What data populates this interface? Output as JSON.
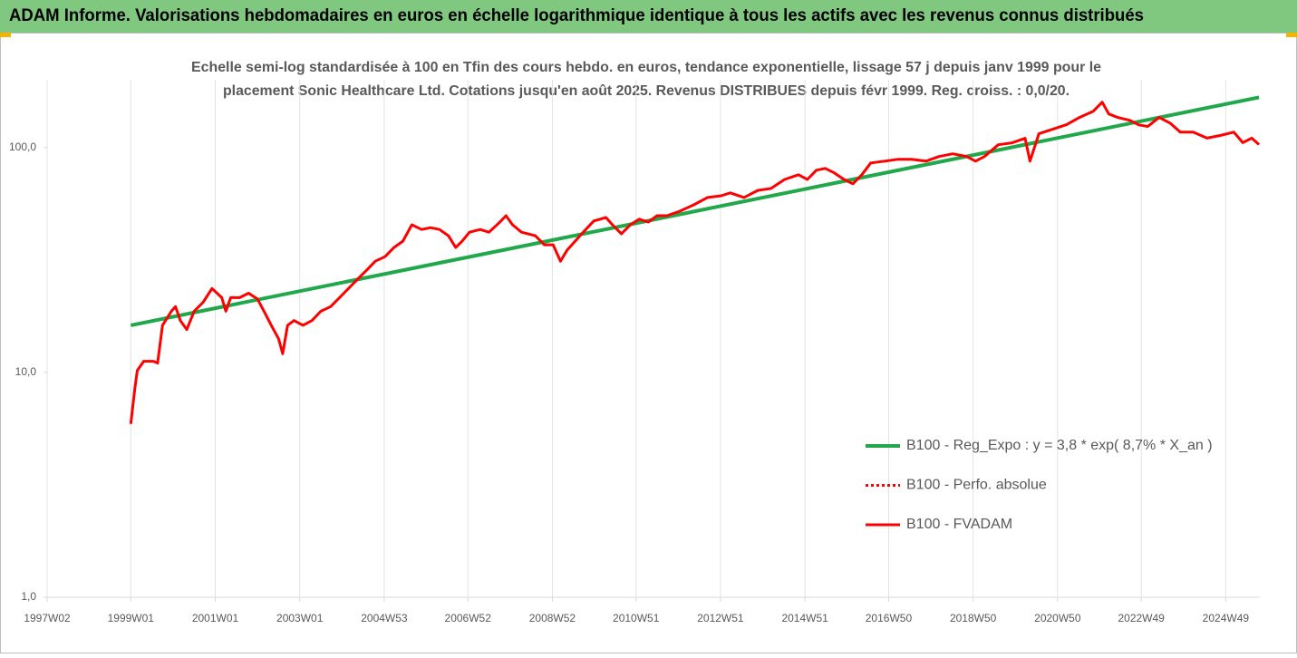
{
  "chart_data": {
    "type": "line",
    "title": "ADAM Informe. Valorisations hebdomadaires en euros en échelle logarithmique identique à tous les actifs avec les revenus connus distribués",
    "subtitle_lines": [
      "Echelle semi-log standardisée à 100 en Tfin des cours hebdo. en euros, tendance exponentielle, lissage 57 j depuis janv 1999 pour le",
      "placement Sonic Healthcare Ltd. Cotations jusqu'en août 2025. Revenus DISTRIBUES depuis févr 1999. Reg. croiss. : 0,0/20."
    ],
    "log_y": true,
    "grid": "x",
    "legend": "right",
    "xlim": [
      "1997W02",
      "2025W39"
    ],
    "xticks": [
      "1997W02",
      "1999W01",
      "2001W01",
      "2003W01",
      "2004W53",
      "2006W52",
      "2008W52",
      "2010W51",
      "2012W51",
      "2014W51",
      "2016W50",
      "2018W50",
      "2020W50",
      "2022W49",
      "2024W49"
    ],
    "ylim": [
      1,
      200
    ],
    "yticks": [
      {
        "value": 1,
        "label": "1,0"
      },
      {
        "value": 10,
        "label": "10,0"
      },
      {
        "value": 100,
        "label": "100,0"
      }
    ],
    "x": [
      "1999W01",
      "1999W06",
      "1999W09",
      "1999W17",
      "1999W29",
      "1999W34",
      "1999W40",
      "1999W51",
      "2000W04",
      "2000W10",
      "2000W18",
      "2000W27",
      "2000W38",
      "2000W49",
      "2001W09",
      "2001W14",
      "2001W20",
      "2001W31",
      "2001W42",
      "2002W01",
      "2002W09",
      "2002W18",
      "2002W27",
      "2002W32",
      "2002W38",
      "2002W46",
      "2003W05",
      "2003W16",
      "2003W27",
      "2003W39",
      "2003W50",
      "2004W09",
      "2004W20",
      "2004W31",
      "2004W42",
      "2005W02",
      "2005W13",
      "2005W24",
      "2005W35",
      "2005W47",
      "2006W06",
      "2006W17",
      "2006W28",
      "2006W37",
      "2006W45",
      "2007W02",
      "2007W15",
      "2007W26",
      "2007W38",
      "2007W47",
      "2008W03",
      "2008W14",
      "2008W31",
      "2008W42",
      "2009W01",
      "2009W10",
      "2009W18",
      "2009W34",
      "2009W51",
      "2010W14",
      "2010W22",
      "2010W33",
      "2010W44",
      "2011W03",
      "2011W14",
      "2011W25",
      "2011W37",
      "2012W01",
      "2012W18",
      "2012W35",
      "2012W52",
      "2013W11",
      "2013W28",
      "2013W45",
      "2014W09",
      "2014W26",
      "2014W43",
      "2015W02",
      "2015W13",
      "2015W24",
      "2015W35",
      "2015W47",
      "2016W06",
      "2016W17",
      "2016W28",
      "2016W45",
      "2017W10",
      "2017W26",
      "2017W44",
      "2018W08",
      "2018W25",
      "2018W42",
      "2019W01",
      "2019W12",
      "2019W29",
      "2019W46",
      "2020W10",
      "2020W16",
      "2020W27",
      "2020W44",
      "2021W09",
      "2021W25",
      "2021W42",
      "2022W01",
      "2022W09",
      "2022W20",
      "2022W35",
      "2022W46",
      "2023W05",
      "2023W19",
      "2023W33",
      "2023W45",
      "2024W09",
      "2024W26",
      "2024W42",
      "2025W07",
      "2025W18",
      "2025W29",
      "2025W38"
    ],
    "series": [
      {
        "name": "B100 - Reg_Expo : y = 3,8 * exp( 8,7% *  X_an )",
        "color": "#21a84a",
        "width": 4,
        "dash": "solid",
        "x": [
          "1999W01",
          "2025W38"
        ],
        "values": [
          16.2,
          167
        ]
      },
      {
        "name": "B100 - Perfo. absolue",
        "color": "#ff0000",
        "width": 3,
        "dash": "dotted"
      },
      {
        "name": "B100 - FVADAM",
        "color": "#ff0000",
        "width": 3,
        "dash": "solid",
        "values": [
          5.9,
          8.5,
          10.2,
          11.2,
          11.2,
          11.0,
          16.2,
          18.7,
          19.6,
          17.0,
          15.5,
          18.7,
          20.5,
          23.6,
          21.5,
          18.7,
          21.5,
          21.5,
          22.5,
          21.2,
          18.7,
          16.2,
          14.1,
          12.1,
          16.2,
          17.0,
          16.2,
          17.0,
          18.7,
          19.6,
          21.5,
          23.6,
          25.9,
          28.4,
          31.2,
          32.7,
          35.9,
          38.3,
          45.3,
          43.2,
          44.0,
          43.2,
          40.5,
          35.9,
          38.3,
          42.0,
          43.2,
          42.0,
          46.1,
          49.7,
          45.3,
          42.0,
          40.5,
          36.9,
          36.9,
          31.2,
          34.9,
          40.5,
          47.1,
          48.8,
          45.3,
          41.3,
          45.3,
          48.0,
          46.6,
          49.7,
          49.7,
          52.1,
          55.6,
          59.9,
          61.0,
          62.8,
          59.9,
          64.5,
          65.7,
          72.1,
          75.6,
          72.1,
          79.2,
          80.7,
          77.1,
          72.1,
          68.9,
          75.6,
          85.3,
          86.9,
          88.6,
          88.6,
          86.9,
          91.1,
          93.7,
          91.1,
          86.9,
          91.1,
          102.8,
          104.8,
          109.8,
          86.9,
          115,
          120.5,
          126.2,
          136,
          145,
          159,
          141,
          136,
          132,
          126,
          124,
          136,
          128,
          117,
          117,
          110,
          113,
          117,
          105,
          110,
          103
        ]
      }
    ]
  }
}
